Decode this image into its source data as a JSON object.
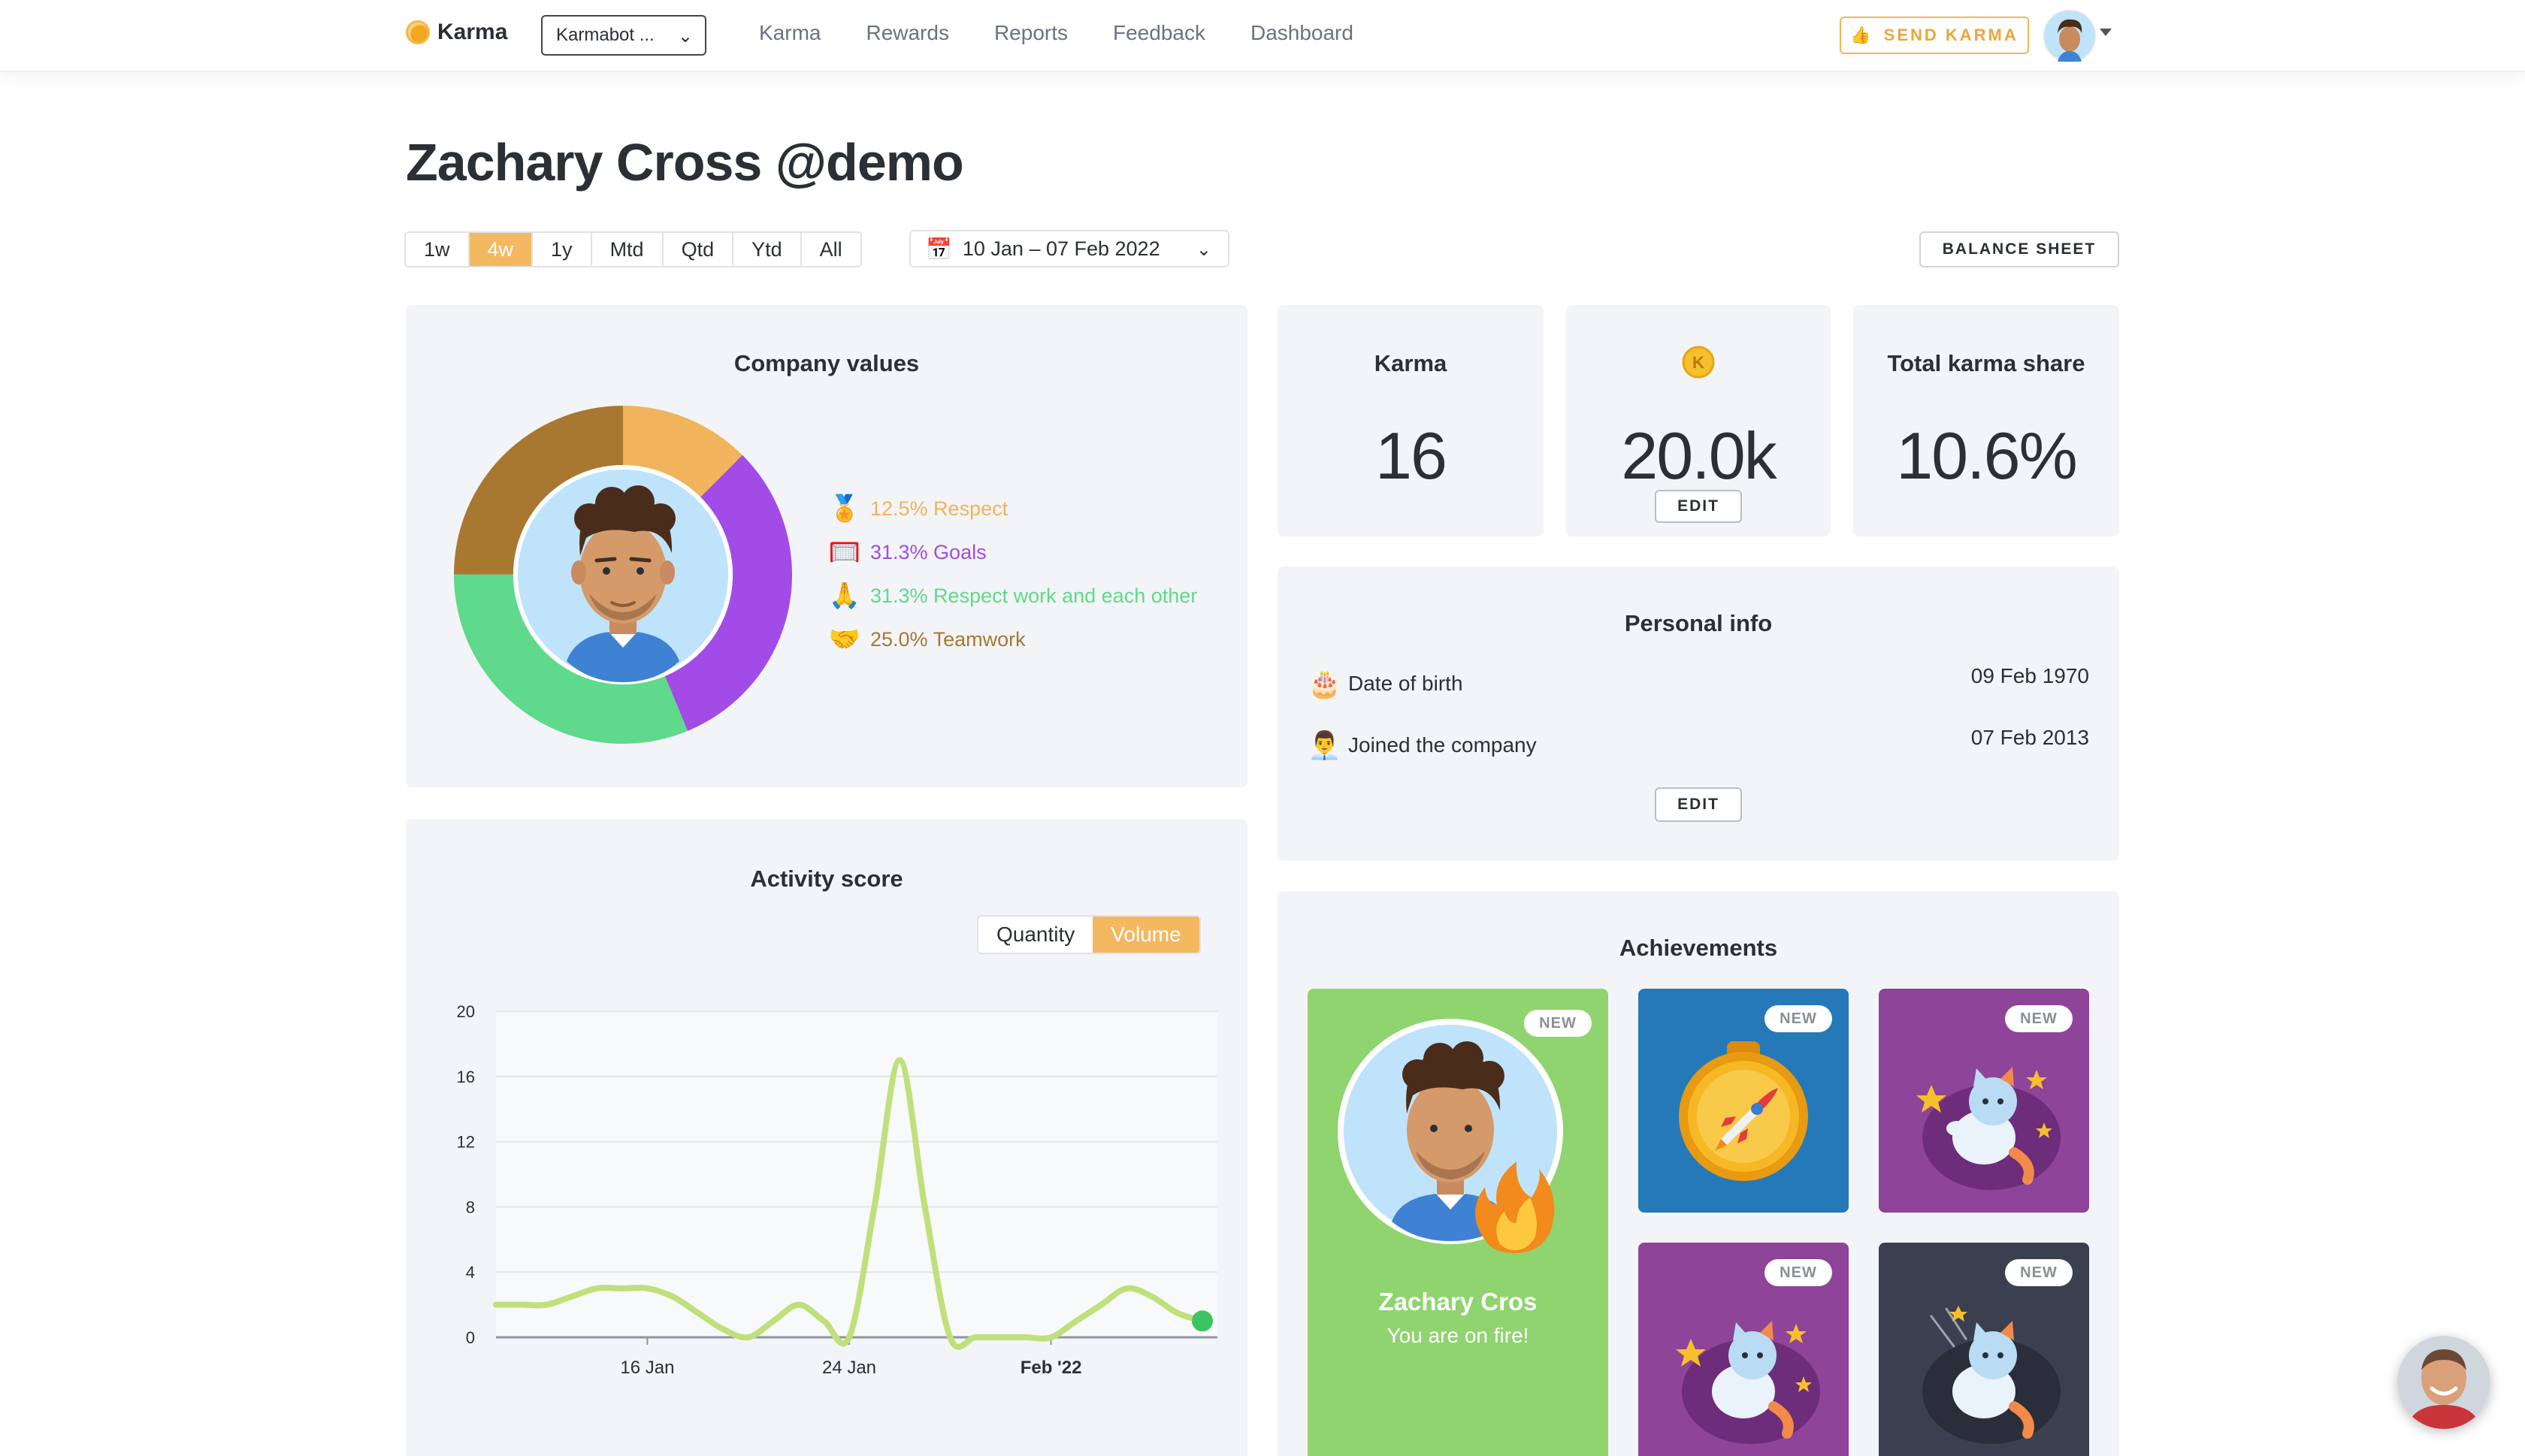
{
  "brand": {
    "name": "Karma"
  },
  "team_select": {
    "value": "Karmabot ..."
  },
  "nav": {
    "links": [
      "Karma",
      "Rewards",
      "Reports",
      "Feedback",
      "Dashboard"
    ]
  },
  "send_karma": {
    "icon": "thumbs-up-icon",
    "label": "SEND KARMA"
  },
  "profile": {
    "name": "Zachary Cross",
    "handle": "@demo"
  },
  "ranges": [
    "1w",
    "4w",
    "1y",
    "Mtd",
    "Qtd",
    "Ytd",
    "All"
  ],
  "active_range": "4w",
  "date_range": {
    "icon": "calendar-icon",
    "value": "10 Jan – 07 Feb 2022"
  },
  "balance_sheet": {
    "label": "BALANCE SHEET"
  },
  "company_values": {
    "title": "Company values",
    "items": [
      {
        "emoji": "🏅",
        "icon": "medal-icon",
        "label": "12.5% Respect",
        "percent": 12.5,
        "color": "#f0b45c"
      },
      {
        "emoji": "🥅",
        "icon": "goal-net-icon",
        "label": "31.3% Goals",
        "percent": 31.3,
        "color": "#a24be6"
      },
      {
        "emoji": "🙏",
        "icon": "praying-hands-icon",
        "label": "31.3% Respect work and each other",
        "percent": 31.3,
        "color": "#5fd98b"
      },
      {
        "emoji": "🤝",
        "icon": "handshake-icon",
        "label": "25.0% Teamwork",
        "percent": 25.0,
        "color": "#a87831"
      }
    ]
  },
  "stats": {
    "karma": {
      "title": "Karma",
      "value": "16"
    },
    "coins": {
      "icon": "karma-coin-icon",
      "value": "20.0k",
      "edit_label": "EDIT"
    },
    "share": {
      "title": "Total karma share",
      "value": "10.6%"
    }
  },
  "personal_info": {
    "title": "Personal info",
    "rows": [
      {
        "emoji": "🎂",
        "icon": "birthday-cake-icon",
        "label": "Date of birth",
        "value": "09 Feb 1970"
      },
      {
        "emoji": "👨‍💼",
        "icon": "office-worker-icon",
        "label": "Joined the company",
        "value": "07 Feb 2013"
      }
    ],
    "edit_label": "EDIT"
  },
  "activity": {
    "title": "Activity score",
    "toggle": [
      "Quantity",
      "Volume"
    ],
    "active_toggle": "Volume"
  },
  "chart_data": {
    "type": "line",
    "title": "Activity score",
    "x": [
      "10 Jan",
      "11 Jan",
      "12 Jan",
      "13 Jan",
      "14 Jan",
      "15 Jan",
      "16 Jan",
      "17 Jan",
      "18 Jan",
      "19 Jan",
      "20 Jan",
      "21 Jan",
      "22 Jan",
      "23 Jan",
      "24 Jan",
      "25 Jan",
      "26 Jan",
      "27 Jan",
      "28 Jan",
      "29 Jan",
      "30 Jan",
      "31 Jan",
      "01 Feb",
      "02 Feb",
      "03 Feb",
      "04 Feb",
      "05 Feb",
      "06 Feb",
      "07 Feb"
    ],
    "values": [
      2,
      2,
      2,
      2.5,
      3,
      3,
      3,
      2.5,
      1.5,
      0.5,
      0,
      1,
      2,
      1,
      0,
      8,
      17,
      8,
      0,
      0,
      0,
      0,
      0,
      1,
      2,
      3,
      2.5,
      1.5,
      1
    ],
    "xticks": [
      "16 Jan",
      "24 Jan",
      "Feb '22"
    ],
    "xtick_index": [
      6,
      14,
      22
    ],
    "yticks": [
      0,
      4,
      8,
      12,
      16,
      20
    ],
    "ylim": [
      0,
      20
    ],
    "color": "#bfe07a",
    "marker_color": "#3cc463"
  },
  "achievements": {
    "title": "Achievements",
    "badge_label": "NEW",
    "featured": {
      "name": "Zachary Cros",
      "subtitle": "You are on fire!",
      "color": "#8fd46f"
    },
    "tiles": [
      {
        "icon": "rocket-medal-icon",
        "color": "#2579b8"
      },
      {
        "icon": "star-cat-icon",
        "color": "#8e4498"
      },
      {
        "icon": "star-cat-icon",
        "color": "#8e4498"
      },
      {
        "icon": "comet-cat-icon",
        "color": "#3b4050"
      }
    ]
  }
}
